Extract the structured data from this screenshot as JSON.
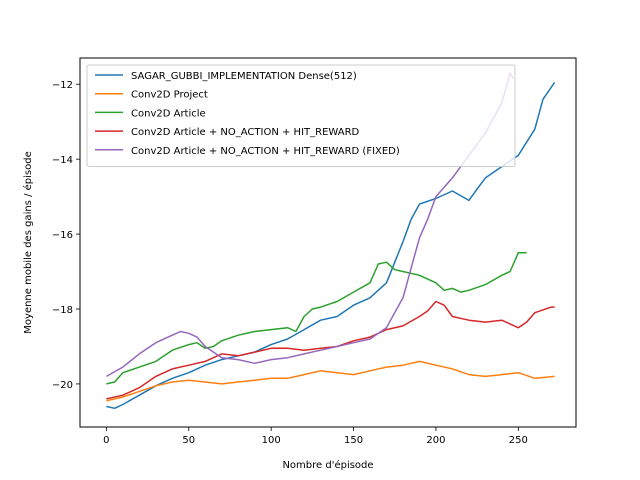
{
  "chart_data": {
    "type": "line",
    "title": "",
    "xlabel": "Nombre d'épisode",
    "ylabel": "Moyenne mobile des gains / épisode",
    "xlim": [
      -16,
      285
    ],
    "ylim": [
      -21.15,
      -11.3
    ],
    "xticks": [
      0,
      50,
      100,
      150,
      200,
      250
    ],
    "yticks": [
      -20,
      -18,
      -16,
      -14,
      -12
    ],
    "grid": false,
    "legend_position": "upper-left",
    "series": [
      {
        "name": "SAGAR_GUBBI_IMPLEMENTATION Dense(512)",
        "color": "#1f77b4",
        "x": [
          0,
          5,
          10,
          20,
          30,
          40,
          50,
          60,
          70,
          80,
          90,
          100,
          110,
          120,
          130,
          140,
          150,
          160,
          170,
          180,
          185,
          190,
          200,
          210,
          220,
          225,
          230,
          240,
          250,
          260,
          265,
          272
        ],
        "y": [
          -20.6,
          -20.65,
          -20.55,
          -20.3,
          -20.05,
          -19.85,
          -19.7,
          -19.5,
          -19.35,
          -19.25,
          -19.15,
          -18.95,
          -18.8,
          -18.55,
          -18.3,
          -18.2,
          -17.9,
          -17.7,
          -17.3,
          -16.2,
          -15.6,
          -15.2,
          -15.05,
          -14.85,
          -15.1,
          -14.8,
          -14.5,
          -14.2,
          -13.9,
          -13.2,
          -12.4,
          -11.95
        ]
      },
      {
        "name": "Conv2D Project",
        "color": "#ff7f0e",
        "x": [
          0,
          10,
          20,
          30,
          40,
          50,
          60,
          70,
          80,
          90,
          100,
          110,
          120,
          130,
          140,
          150,
          160,
          170,
          180,
          190,
          200,
          210,
          220,
          230,
          240,
          250,
          260,
          272
        ],
        "y": [
          -20.45,
          -20.35,
          -20.2,
          -20.05,
          -19.95,
          -19.9,
          -19.95,
          -20.0,
          -19.95,
          -19.9,
          -19.85,
          -19.85,
          -19.75,
          -19.65,
          -19.7,
          -19.75,
          -19.65,
          -19.55,
          -19.5,
          -19.4,
          -19.5,
          -19.6,
          -19.75,
          -19.8,
          -19.75,
          -19.7,
          -19.85,
          -19.8
        ]
      },
      {
        "name": "Conv2D Article",
        "color": "#2ca02c",
        "x": [
          0,
          5,
          10,
          20,
          30,
          40,
          50,
          55,
          60,
          65,
          70,
          80,
          90,
          100,
          110,
          115,
          120,
          125,
          130,
          140,
          150,
          160,
          165,
          170,
          175,
          180,
          190,
          200,
          205,
          210,
          215,
          220,
          230,
          240,
          245,
          250,
          255
        ],
        "y": [
          -20.0,
          -19.95,
          -19.7,
          -19.55,
          -19.4,
          -19.1,
          -18.95,
          -18.9,
          -19.05,
          -19.0,
          -18.85,
          -18.7,
          -18.6,
          -18.55,
          -18.5,
          -18.6,
          -18.2,
          -18.0,
          -17.95,
          -17.8,
          -17.55,
          -17.3,
          -16.8,
          -16.75,
          -16.95,
          -17.0,
          -17.1,
          -17.3,
          -17.5,
          -17.45,
          -17.55,
          -17.5,
          -17.35,
          -17.1,
          -17.0,
          -16.5,
          -16.5
        ]
      },
      {
        "name": "Conv2D Article + NO_ACTION + HIT_REWARD",
        "color": "#d62728",
        "x": [
          0,
          10,
          20,
          30,
          40,
          50,
          60,
          70,
          80,
          90,
          100,
          110,
          120,
          130,
          140,
          150,
          160,
          170,
          180,
          190,
          195,
          200,
          205,
          210,
          220,
          230,
          240,
          250,
          255,
          260,
          270,
          272
        ],
        "y": [
          -20.4,
          -20.3,
          -20.1,
          -19.8,
          -19.6,
          -19.5,
          -19.4,
          -19.2,
          -19.25,
          -19.15,
          -19.05,
          -19.05,
          -19.1,
          -19.05,
          -19.0,
          -18.85,
          -18.75,
          -18.55,
          -18.45,
          -18.2,
          -18.05,
          -17.8,
          -17.9,
          -18.2,
          -18.3,
          -18.35,
          -18.3,
          -18.5,
          -18.35,
          -18.1,
          -17.95,
          -17.95
        ]
      },
      {
        "name": "Conv2D Article + NO_ACTION + HIT_REWARD (FIXED)",
        "color": "#9467bd",
        "x": [
          0,
          10,
          20,
          30,
          40,
          45,
          50,
          55,
          60,
          65,
          70,
          80,
          90,
          100,
          110,
          120,
          130,
          140,
          150,
          160,
          170,
          175,
          180,
          185,
          190,
          195,
          200,
          210,
          220,
          230,
          235,
          240,
          245,
          247
        ],
        "y": [
          -19.8,
          -19.55,
          -19.2,
          -18.9,
          -18.7,
          -18.6,
          -18.65,
          -18.75,
          -19.0,
          -19.15,
          -19.3,
          -19.35,
          -19.45,
          -19.35,
          -19.3,
          -19.2,
          -19.1,
          -19.0,
          -18.9,
          -18.8,
          -18.5,
          -18.1,
          -17.7,
          -16.9,
          -16.1,
          -15.6,
          -15.0,
          -14.5,
          -13.9,
          -13.3,
          -12.9,
          -12.5,
          -11.7,
          -11.85
        ]
      }
    ]
  }
}
